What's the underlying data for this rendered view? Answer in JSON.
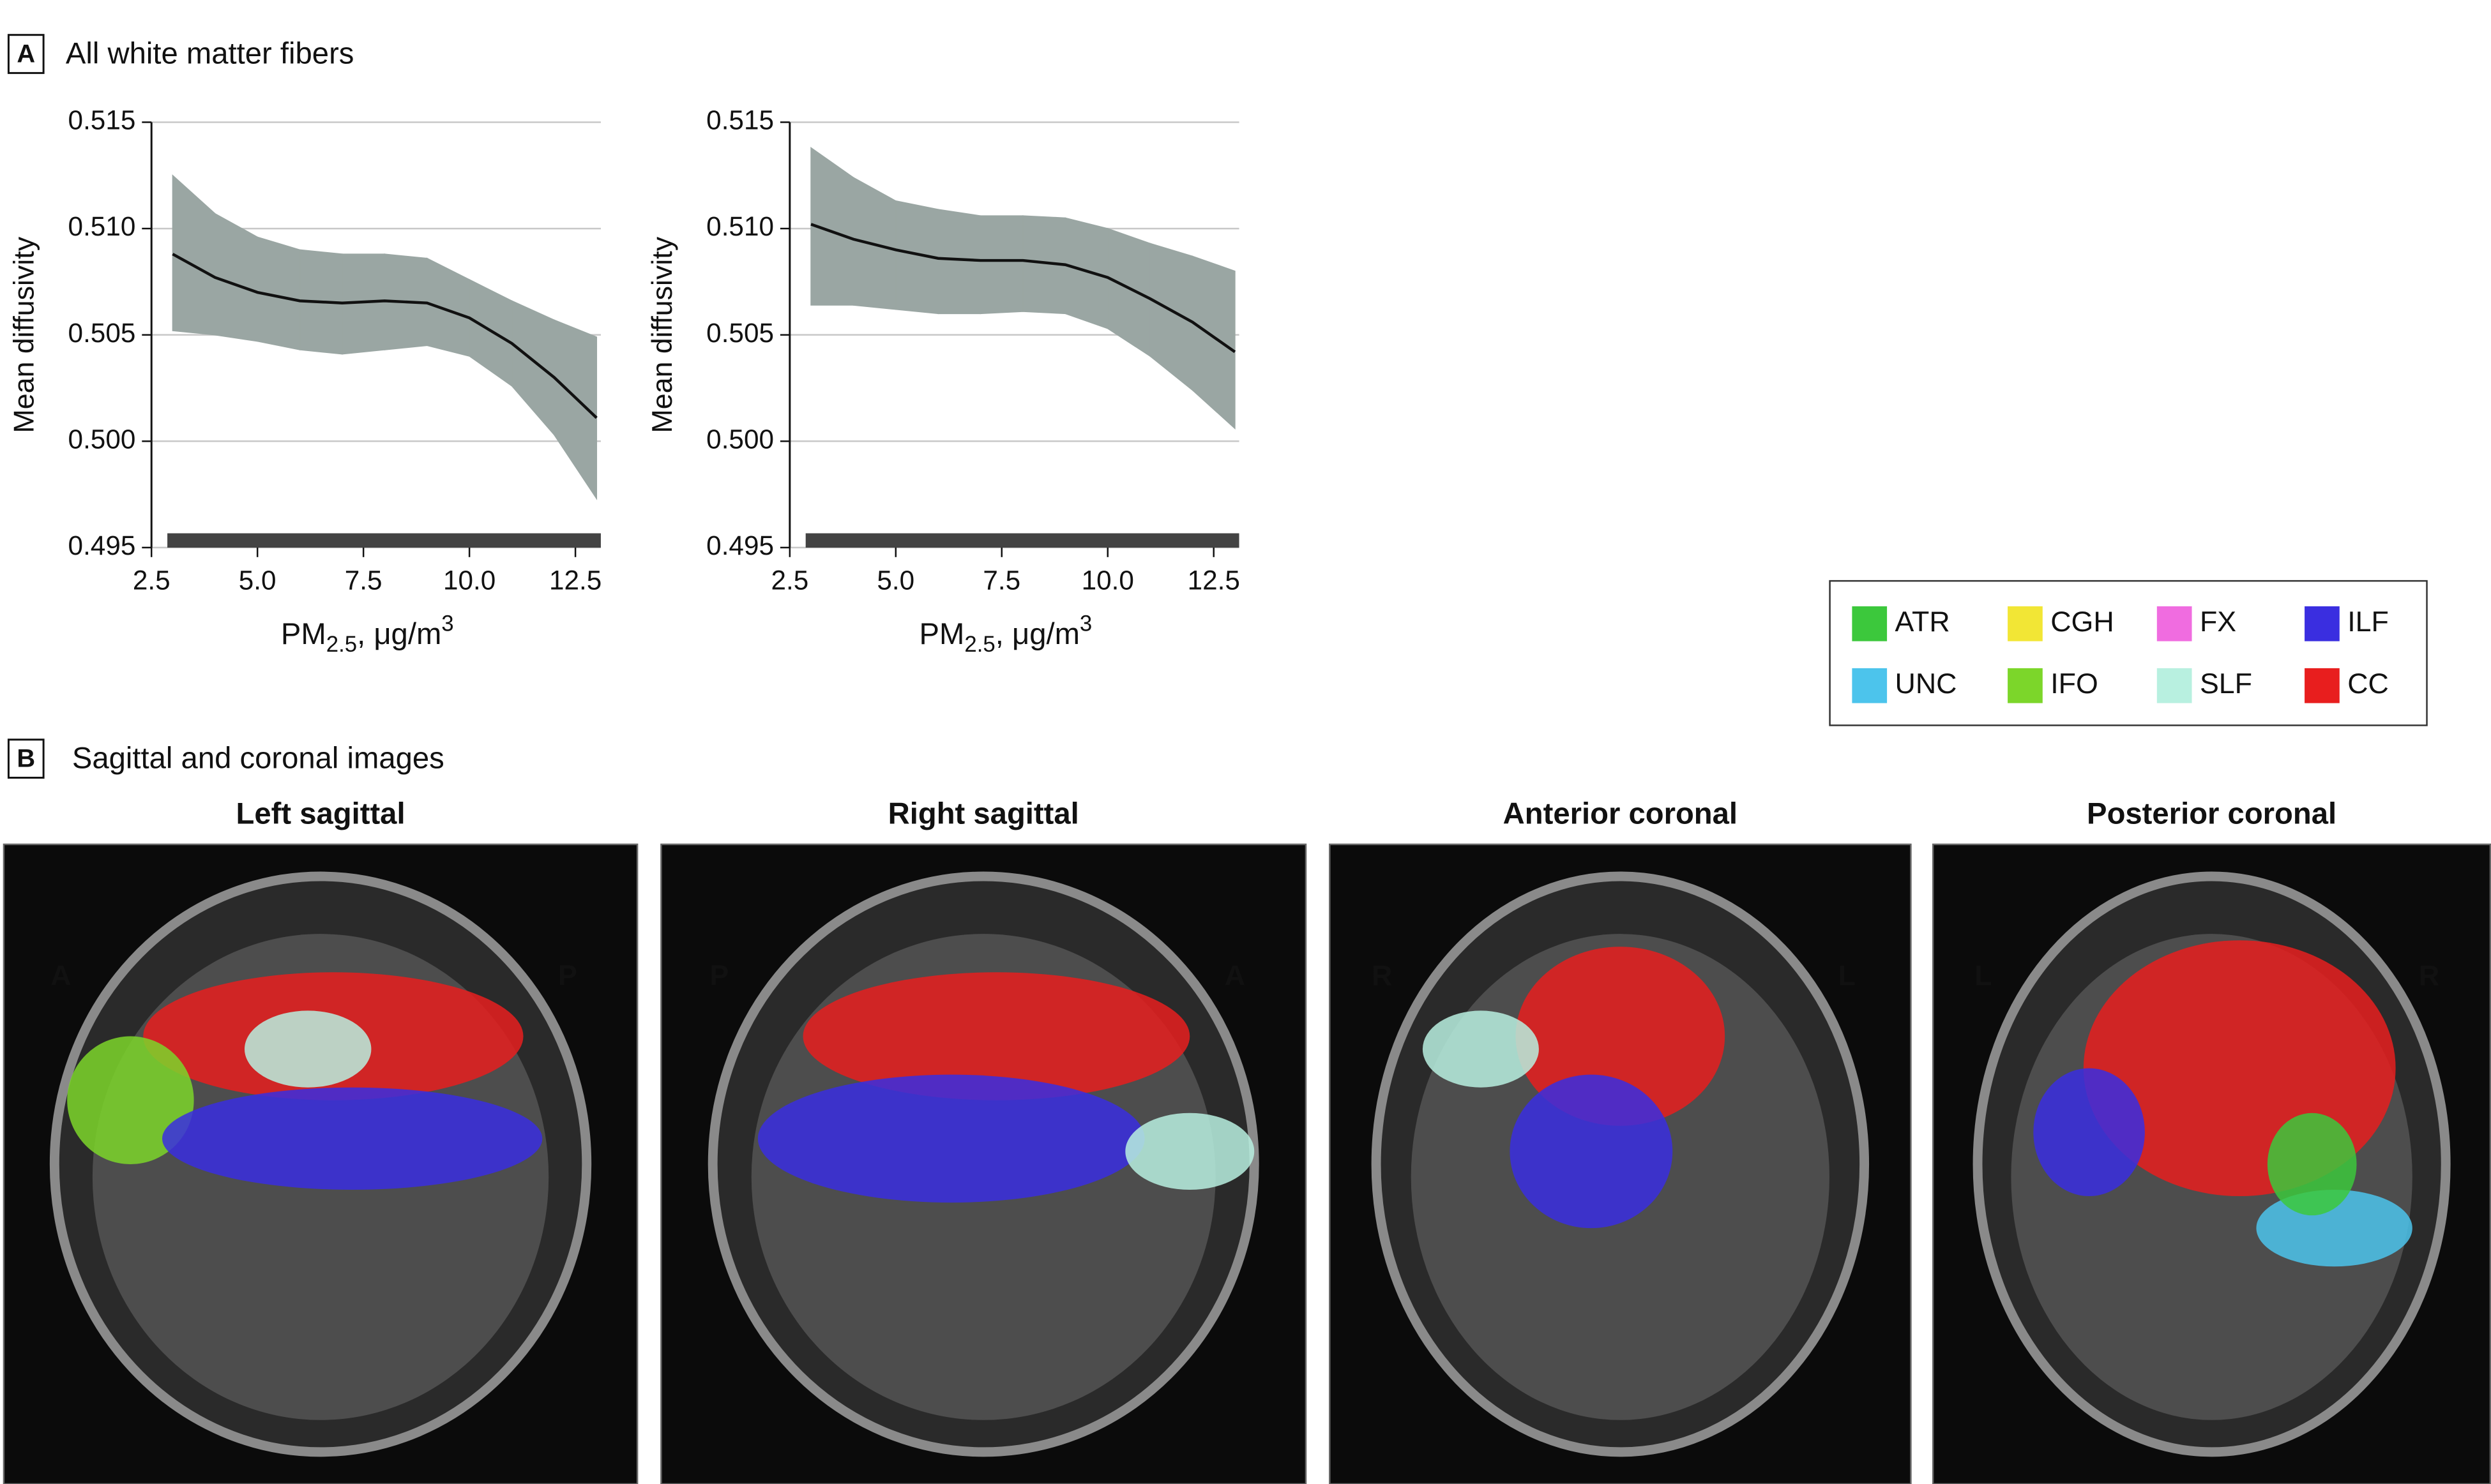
{
  "panel_a": {
    "label": "A",
    "title": "All white matter fibers"
  },
  "chart_data": [
    {
      "type": "line",
      "y_label": "Mean diffusivity",
      "x_label": {
        "base": "PM",
        "sub": "2.5",
        "after": ", μg/m",
        "sup": "3"
      },
      "x": [
        3,
        4,
        5,
        6,
        7,
        8,
        9,
        10,
        11,
        12,
        13
      ],
      "series": [
        {
          "color": "#111111",
          "band_color": "#9aa6a3",
          "values": [
            0.5088,
            0.5077,
            0.507,
            0.5066,
            0.5065,
            0.5066,
            0.5065,
            0.5058,
            0.5046,
            0.503,
            0.5011
          ],
          "lower": [
            0.5052,
            0.505,
            0.5047,
            0.5043,
            0.5041,
            0.5043,
            0.5045,
            0.504,
            0.5026,
            0.5003,
            0.4973
          ],
          "upper": [
            0.5125,
            0.5107,
            0.5096,
            0.509,
            0.5088,
            0.5088,
            0.5086,
            0.5076,
            0.5066,
            0.5057,
            0.5049
          ]
        }
      ],
      "xlim": [
        2.5,
        13.1
      ],
      "ylim": [
        0.495,
        0.515
      ],
      "xticks": [
        2.5,
        {
          "value": 5,
          "label": "5.0"
        },
        7.5,
        {
          "value": 10,
          "label": "10.0"
        },
        12.5
      ],
      "yticks": [
        0.495,
        {
          "value": 0.5,
          "label": "0.500"
        },
        0.505,
        {
          "value": 0.51,
          "label": "0.510"
        },
        0.515
      ],
      "grid": true
    },
    {
      "type": "line",
      "y_label": "Mean diffusivity",
      "x_label": {
        "base": "PM",
        "sub": "2.5",
        "after": ", μg/m",
        "sup": "3"
      },
      "x": [
        3,
        4,
        5,
        6,
        7,
        8,
        9,
        10,
        11,
        12,
        13
      ],
      "series": [
        {
          "color": "#111111",
          "band_color": "#9aa6a3",
          "values": [
            0.5102,
            0.5095,
            0.509,
            0.5086,
            0.5085,
            0.5085,
            0.5083,
            0.5077,
            0.5067,
            0.5056,
            0.5042
          ],
          "lower": [
            0.5064,
            0.5064,
            0.5062,
            0.506,
            0.506,
            0.5061,
            0.506,
            0.5053,
            0.504,
            0.5024,
            0.5006
          ],
          "upper": [
            0.5138,
            0.5124,
            0.5113,
            0.5109,
            0.5106,
            0.5106,
            0.5105,
            0.51,
            0.5093,
            0.5087,
            0.508
          ]
        }
      ],
      "xlim": [
        2.5,
        13.1
      ],
      "ylim": [
        0.495,
        0.515
      ],
      "xticks": [
        2.5,
        {
          "value": 5,
          "label": "5.0"
        },
        7.5,
        {
          "value": 10,
          "label": "10.0"
        },
        12.5
      ],
      "yticks": [
        0.495,
        {
          "value": 0.5,
          "label": "0.500"
        },
        0.505,
        {
          "value": 0.51,
          "label": "0.510"
        },
        0.515
      ],
      "grid": true
    }
  ],
  "legend": {
    "items": [
      {
        "name": "ATR",
        "color": "#3cc83c"
      },
      {
        "name": "CGH",
        "color": "#f2e635"
      },
      {
        "name": "FX",
        "color": "#f06ce0"
      },
      {
        "name": "ILF",
        "color": "#3a2ee0"
      },
      {
        "name": "UNC",
        "color": "#4cc4ec"
      },
      {
        "name": "IFO",
        "color": "#7cd62a"
      },
      {
        "name": "SLF",
        "color": "#b8f0e0"
      },
      {
        "name": "CC",
        "color": "#e81e1e"
      }
    ]
  },
  "panel_b": {
    "label": "B",
    "title": "Sagittal and coronal images",
    "images": [
      {
        "title": "Left sagittal",
        "left": "A",
        "right": "P"
      },
      {
        "title": "Right sagittal",
        "left": "P",
        "right": "A"
      },
      {
        "title": "Anterior coronal",
        "left": "R",
        "right": "L"
      },
      {
        "title": "Posterior coronal",
        "left": "L",
        "right": "R"
      }
    ]
  }
}
